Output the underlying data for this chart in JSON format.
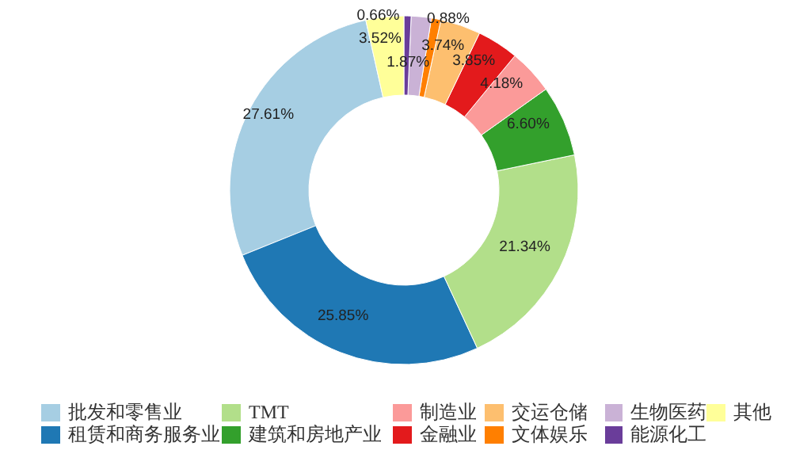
{
  "chart_data": {
    "type": "donut",
    "categories": [
      "批发和零售业",
      "租赁和商务服务业",
      "TMT",
      "建筑和房地产业",
      "制造业",
      "金融业",
      "交运仓储",
      "文体娱乐",
      "生物医药",
      "能源化工",
      "其他"
    ],
    "values": [
      27.61,
      25.85,
      21.34,
      6.6,
      4.18,
      3.85,
      3.74,
      0.88,
      1.87,
      0.66,
      3.52
    ],
    "value_labels": [
      "27.61%",
      "25.85%",
      "21.34%",
      "6.60%",
      "4.18%",
      "3.85%",
      "3.74%",
      "0.88%",
      "1.87%",
      "0.66%",
      "3.52%"
    ],
    "colors": [
      "#a6cee3",
      "#1f78b4",
      "#b2df8a",
      "#33a02c",
      "#fb9a99",
      "#e31a1c",
      "#fdbf6f",
      "#ff7f00",
      "#cab2d6",
      "#6a3d9a",
      "#ffff99"
    ],
    "legend": "bottom"
  }
}
